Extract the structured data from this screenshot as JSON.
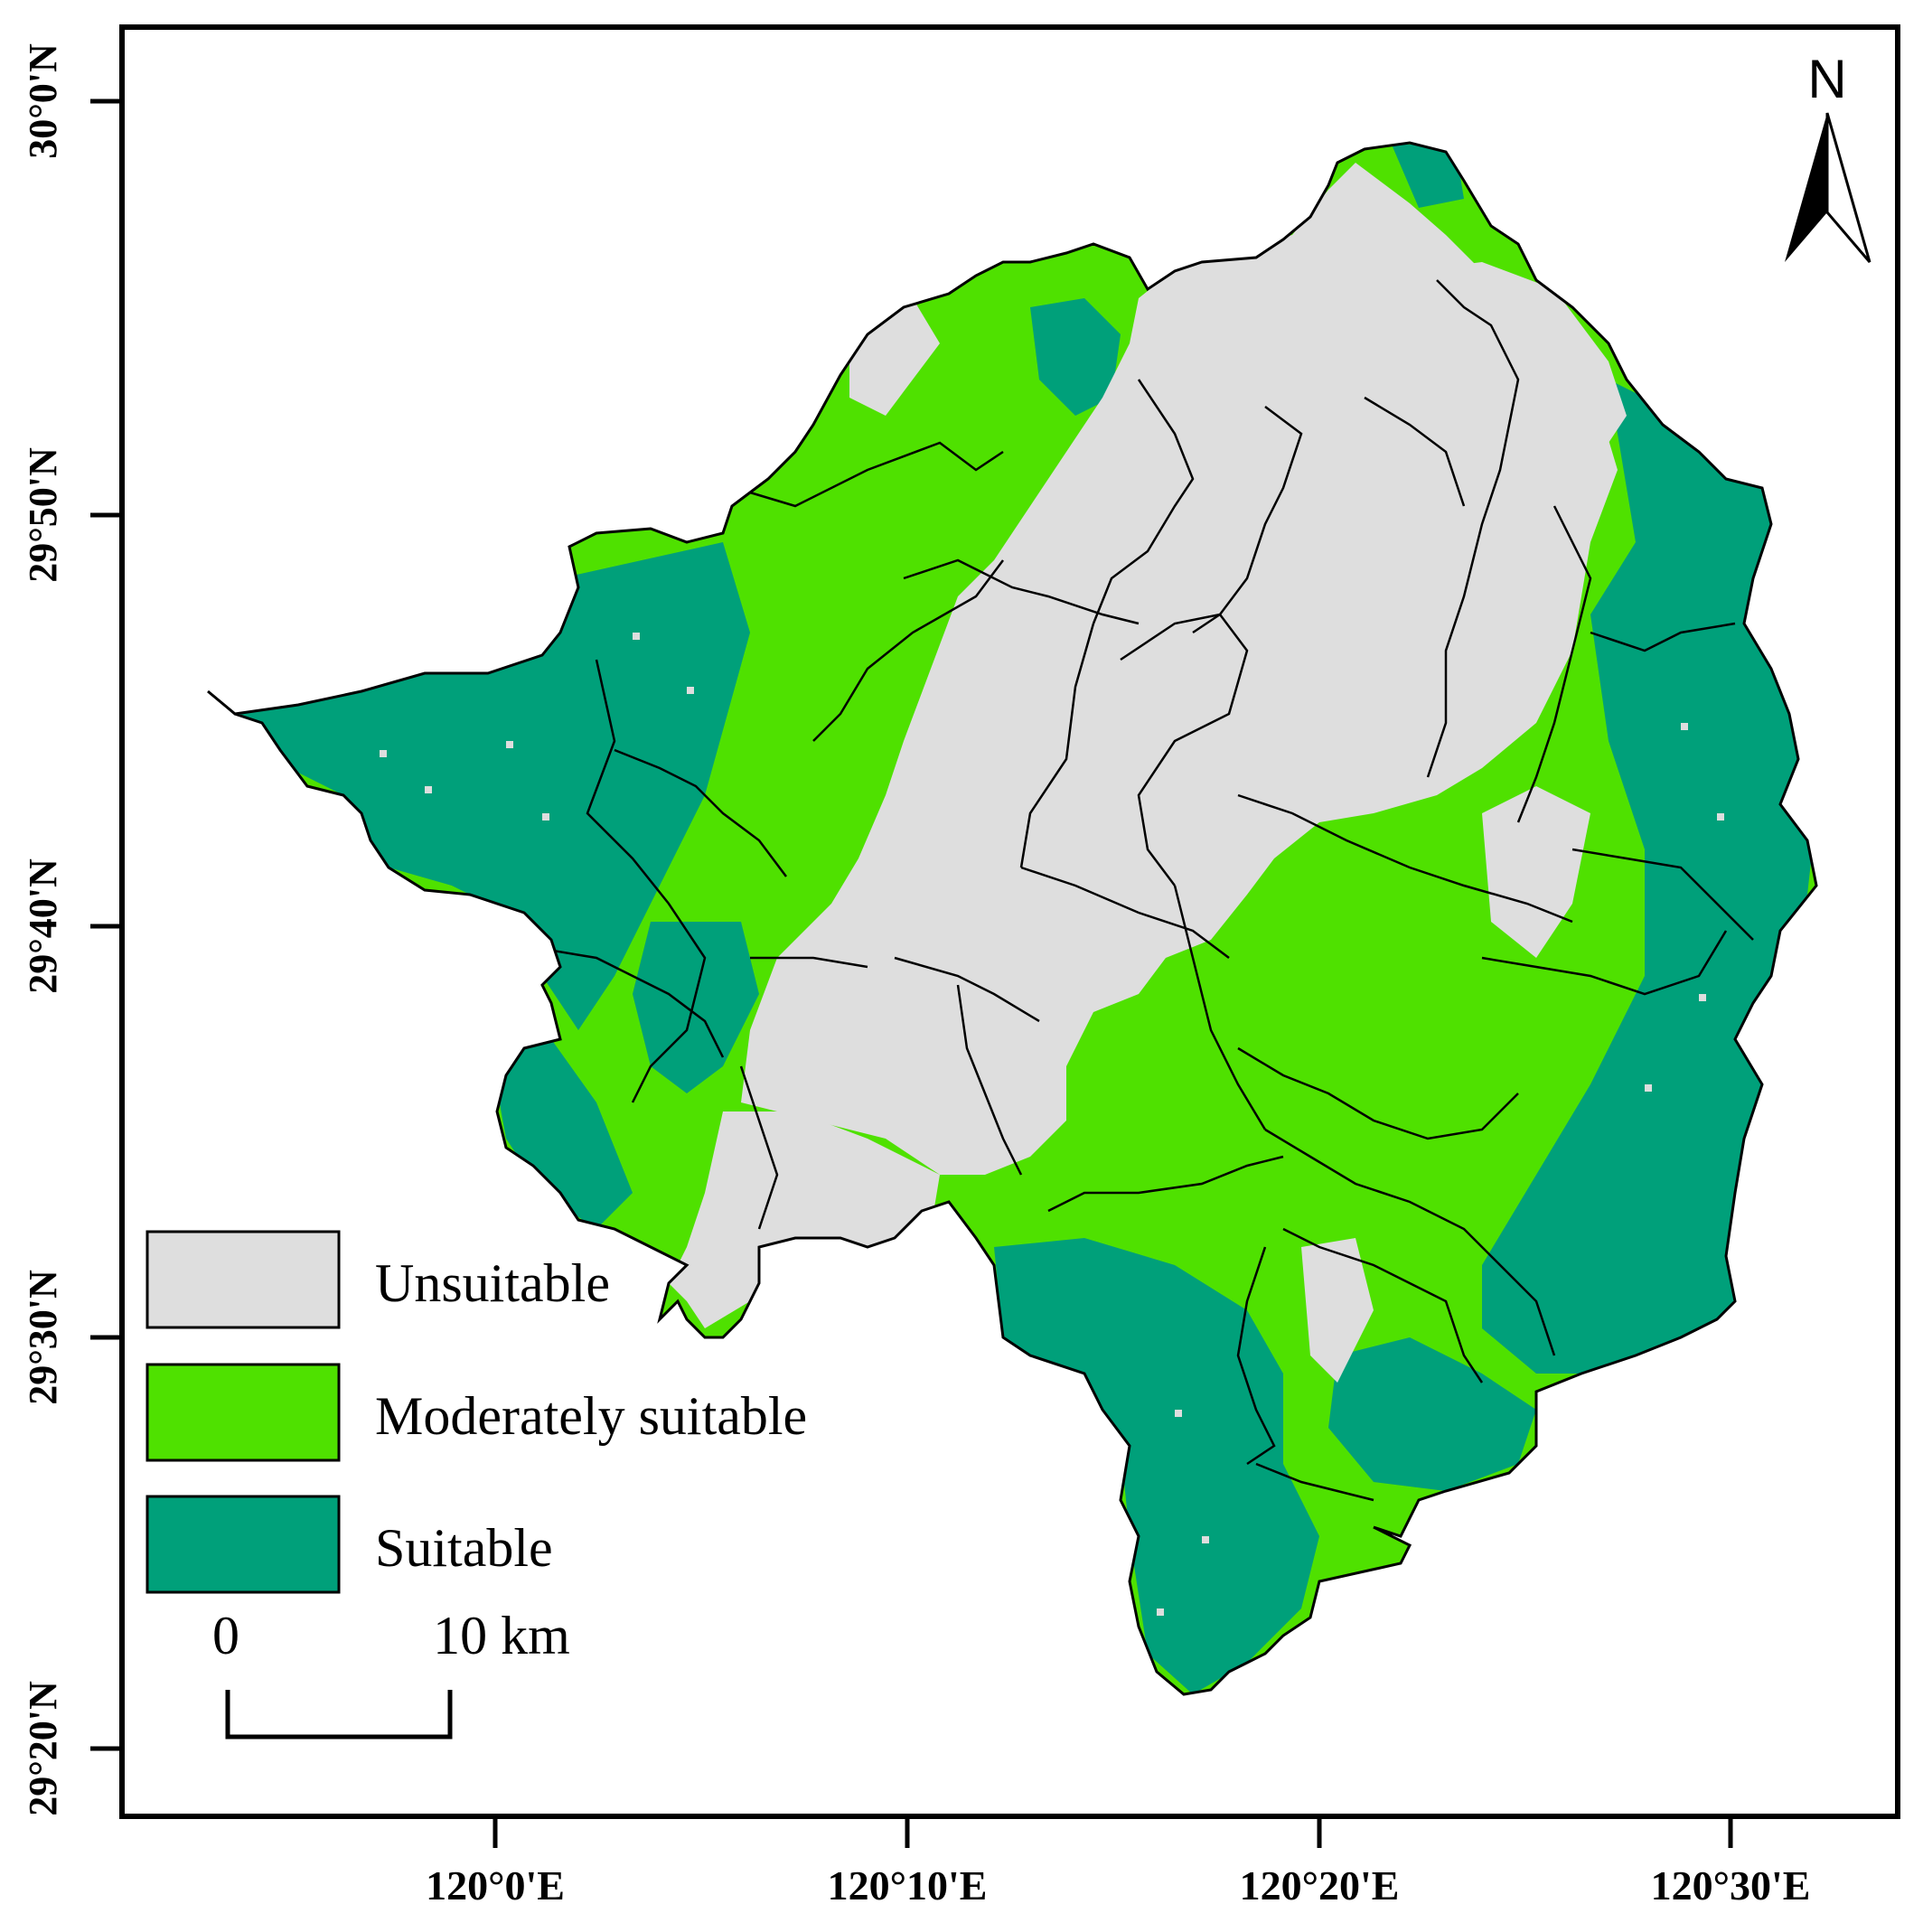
{
  "map": {
    "lat_ticks": [
      "30°0'N",
      "29°50'N",
      "29°40'N",
      "29°30'N",
      "29°20'N"
    ],
    "lon_ticks": [
      "120°0'E",
      "120°10'E",
      "120°20'E",
      "120°30'E"
    ],
    "north_label": "N",
    "legend": [
      {
        "label": "Unsuitable",
        "color": "#dedede"
      },
      {
        "label": "Moderately suitable",
        "color": "#4fe100"
      },
      {
        "label": "Suitable",
        "color": "#00a07a"
      }
    ],
    "scale": {
      "start": "0",
      "end": "10 km"
    }
  }
}
